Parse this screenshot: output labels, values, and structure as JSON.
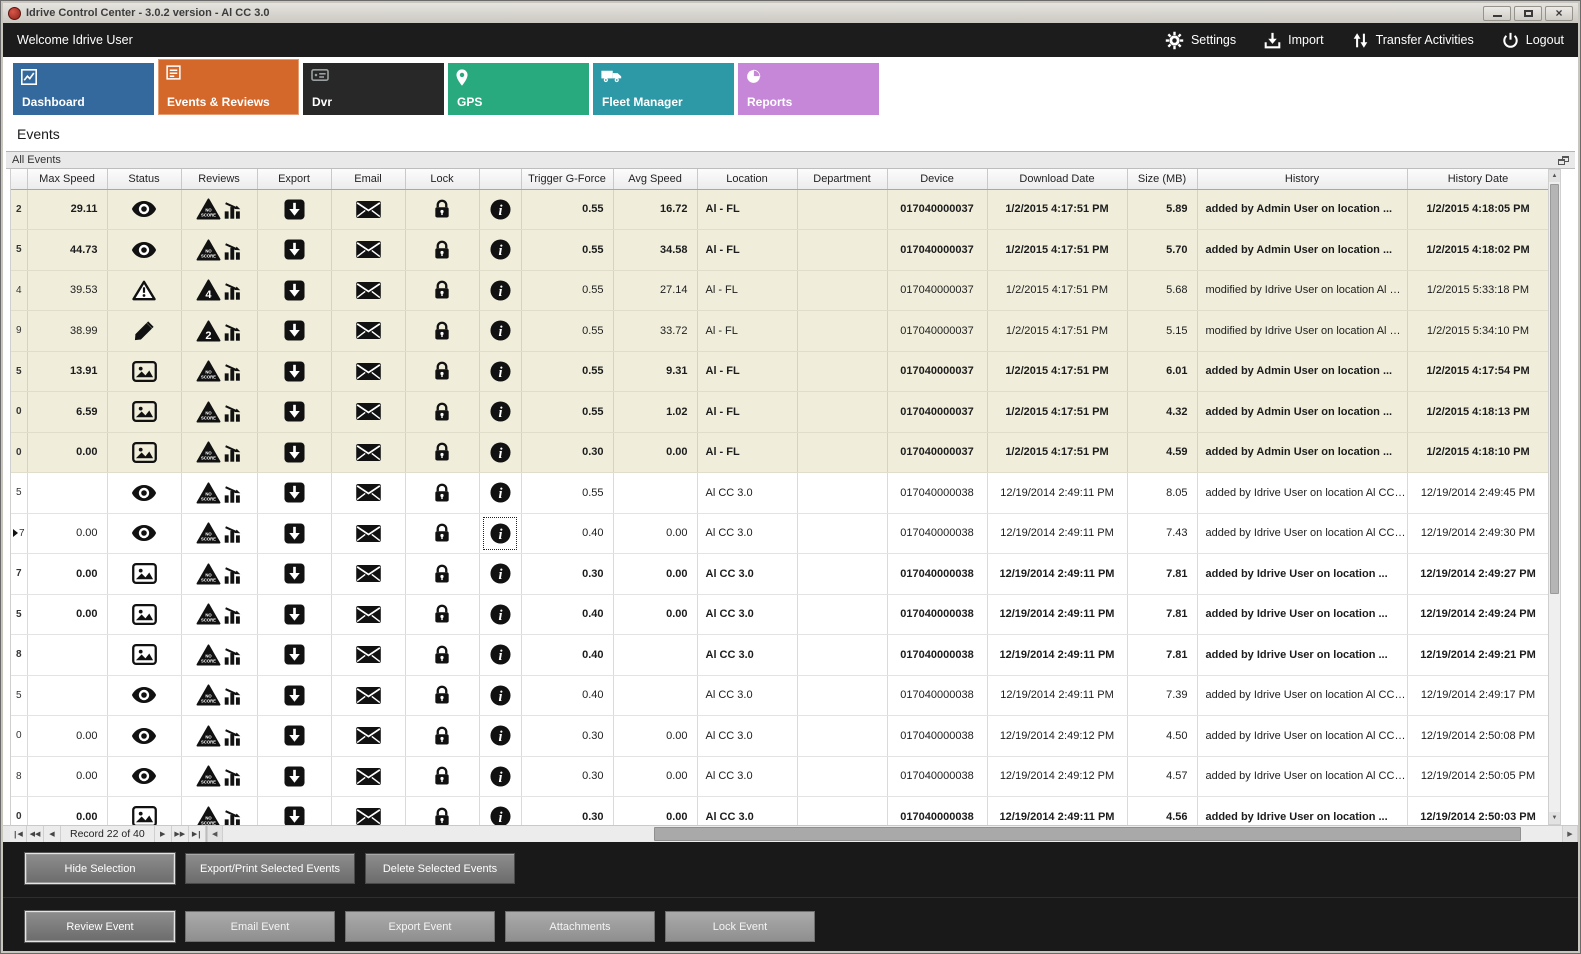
{
  "window": {
    "title": "Idrive Control Center - 3.0.2 version - Al CC 3.0"
  },
  "topbar": {
    "welcome": "Welcome Idrive User",
    "actions": [
      {
        "id": "settings",
        "label": "Settings",
        "icon": "gear-icon"
      },
      {
        "id": "import",
        "label": "Import",
        "icon": "import-icon"
      },
      {
        "id": "transfer-activities",
        "label": "Transfer Activities",
        "icon": "transfer-arrows-icon"
      },
      {
        "id": "logout",
        "label": "Logout",
        "icon": "power-icon"
      }
    ]
  },
  "tabs": [
    {
      "label": "Dashboard",
      "color": "#33699c",
      "icon": "line-chart-icon",
      "selected": false
    },
    {
      "label": "Events & Reviews",
      "color": "#d4682a",
      "icon": "checklist-icon",
      "selected": true
    },
    {
      "label": "Dvr",
      "color": "#282828",
      "icon": "dvr-icon",
      "selected": false
    },
    {
      "label": "GPS",
      "color": "#29a97e",
      "icon": "map-pin-icon",
      "selected": false
    },
    {
      "label": "Fleet Manager",
      "color": "#2d98a6",
      "icon": "truck-icon",
      "selected": false
    },
    {
      "label": "Reports",
      "color": "#c687d8",
      "icon": "pie-chart-icon",
      "selected": false
    }
  ],
  "section_title": "Events",
  "panel": {
    "title": "All Events"
  },
  "table": {
    "columns": [
      "Max Speed",
      "Status",
      "Reviews",
      "Export",
      "Email",
      "Lock",
      "",
      "Trigger G-Force",
      "Avg Speed",
      "Location",
      "Department",
      "Device",
      "Download Date",
      "Size (MB)",
      "History",
      "History Date"
    ],
    "rows": [
      {
        "row_id": "2",
        "selected": false,
        "bold": true,
        "shaded": true,
        "max_speed": "29.11",
        "status_icon": "eye-icon",
        "review_badge": "NO SCORE",
        "trigger_g_force": "0.55",
        "avg_speed": "16.72",
        "location": "Al - FL",
        "department": "",
        "device": "017040000037",
        "download_date": "1/2/2015 4:17:51 PM",
        "size_mb": "5.89",
        "history": "added by Admin User on location ...",
        "history_date": "1/2/2015 4:18:05 PM"
      },
      {
        "row_id": "5",
        "selected": false,
        "bold": true,
        "shaded": true,
        "max_speed": "44.73",
        "status_icon": "eye-icon",
        "review_badge": "NO SCORE",
        "trigger_g_force": "0.55",
        "avg_speed": "34.58",
        "location": "Al - FL",
        "department": "",
        "device": "017040000037",
        "download_date": "1/2/2015 4:17:51 PM",
        "size_mb": "5.70",
        "history": "added by Admin User on location ...",
        "history_date": "1/2/2015 4:18:02 PM"
      },
      {
        "row_id": "4",
        "selected": false,
        "bold": false,
        "shaded": true,
        "max_speed": "39.53",
        "status_icon": "warning-icon",
        "review_badge": "4",
        "trigger_g_force": "0.55",
        "avg_speed": "27.14",
        "location": "Al - FL",
        "department": "",
        "device": "017040000037",
        "download_date": "1/2/2015 4:17:51 PM",
        "size_mb": "5.68",
        "history": "modified by Idrive User on location Al C...",
        "history_date": "1/2/2015 5:33:18 PM"
      },
      {
        "row_id": "9",
        "selected": false,
        "bold": false,
        "shaded": true,
        "max_speed": "38.99",
        "status_icon": "pencil-icon",
        "review_badge": "2",
        "trigger_g_force": "0.55",
        "avg_speed": "33.72",
        "location": "Al - FL",
        "department": "",
        "device": "017040000037",
        "download_date": "1/2/2015 4:17:51 PM",
        "size_mb": "5.15",
        "history": "modified by Idrive User on location Al C...",
        "history_date": "1/2/2015 5:34:10 PM"
      },
      {
        "row_id": "5",
        "selected": false,
        "bold": true,
        "shaded": true,
        "max_speed": "13.91",
        "status_icon": "image-icon",
        "review_badge": "NO SCORE",
        "trigger_g_force": "0.55",
        "avg_speed": "9.31",
        "location": "Al - FL",
        "department": "",
        "device": "017040000037",
        "download_date": "1/2/2015 4:17:51 PM",
        "size_mb": "6.01",
        "history": "added by Admin User on location ...",
        "history_date": "1/2/2015 4:17:54 PM"
      },
      {
        "row_id": "0",
        "selected": false,
        "bold": true,
        "shaded": true,
        "max_speed": "6.59",
        "status_icon": "image-icon",
        "review_badge": "NO SCORE",
        "trigger_g_force": "0.55",
        "avg_speed": "1.02",
        "location": "Al - FL",
        "department": "",
        "device": "017040000037",
        "download_date": "1/2/2015 4:17:51 PM",
        "size_mb": "4.32",
        "history": "added by Admin User on location ...",
        "history_date": "1/2/2015 4:18:13 PM"
      },
      {
        "row_id": "0",
        "selected": false,
        "bold": true,
        "shaded": true,
        "max_speed": "0.00",
        "status_icon": "image-icon",
        "review_badge": "NO SCORE",
        "trigger_g_force": "0.30",
        "avg_speed": "0.00",
        "location": "Al - FL",
        "department": "",
        "device": "017040000037",
        "download_date": "1/2/2015 4:17:51 PM",
        "size_mb": "4.59",
        "history": "added by Admin User on location ...",
        "history_date": "1/2/2015 4:18:10 PM"
      },
      {
        "row_id": "5",
        "selected": false,
        "bold": false,
        "shaded": false,
        "max_speed": "",
        "status_icon": "eye-icon",
        "review_badge": "NO SCORE",
        "trigger_g_force": "0.55",
        "avg_speed": "",
        "location": "Al CC 3.0",
        "department": "",
        "device": "017040000038",
        "download_date": "12/19/2014 2:49:11 PM",
        "size_mb": "8.05",
        "history": "added by Idrive User on location Al CC ...",
        "history_date": "12/19/2014 2:49:45 PM"
      },
      {
        "row_id": "7",
        "selected": true,
        "bold": false,
        "shaded": false,
        "max_speed": "0.00",
        "status_icon": "eye-icon",
        "review_badge": "NO SCORE",
        "trigger_g_force": "0.40",
        "avg_speed": "0.00",
        "location": "Al CC 3.0",
        "department": "",
        "device": "017040000038",
        "download_date": "12/19/2014 2:49:11 PM",
        "size_mb": "7.43",
        "history": "added by Idrive User on location Al CC ...",
        "history_date": "12/19/2014 2:49:30 PM"
      },
      {
        "row_id": "7",
        "selected": false,
        "bold": true,
        "shaded": false,
        "max_speed": "0.00",
        "status_icon": "image-icon",
        "review_badge": "NO SCORE",
        "trigger_g_force": "0.30",
        "avg_speed": "0.00",
        "location": "Al CC 3.0",
        "department": "",
        "device": "017040000038",
        "download_date": "12/19/2014 2:49:11 PM",
        "size_mb": "7.81",
        "history": "added by Idrive User on location ...",
        "history_date": "12/19/2014 2:49:27 PM"
      },
      {
        "row_id": "5",
        "selected": false,
        "bold": true,
        "shaded": false,
        "max_speed": "0.00",
        "status_icon": "image-icon",
        "review_badge": "NO SCORE",
        "trigger_g_force": "0.40",
        "avg_speed": "0.00",
        "location": "Al CC 3.0",
        "department": "",
        "device": "017040000038",
        "download_date": "12/19/2014 2:49:11 PM",
        "size_mb": "7.81",
        "history": "added by Idrive User on location ...",
        "history_date": "12/19/2014 2:49:24 PM"
      },
      {
        "row_id": "8",
        "selected": false,
        "bold": true,
        "shaded": false,
        "max_speed": "",
        "status_icon": "image-icon",
        "review_badge": "NO SCORE",
        "trigger_g_force": "0.40",
        "avg_speed": "",
        "location": "Al CC 3.0",
        "department": "",
        "device": "017040000038",
        "download_date": "12/19/2014 2:49:11 PM",
        "size_mb": "7.81",
        "history": "added by Idrive User on location ...",
        "history_date": "12/19/2014 2:49:21 PM"
      },
      {
        "row_id": "5",
        "selected": false,
        "bold": false,
        "shaded": false,
        "max_speed": "",
        "status_icon": "eye-icon",
        "review_badge": "NO SCORE",
        "trigger_g_force": "0.40",
        "avg_speed": "",
        "location": "Al CC 3.0",
        "department": "",
        "device": "017040000038",
        "download_date": "12/19/2014 2:49:11 PM",
        "size_mb": "7.39",
        "history": "added by Idrive User on location Al CC ...",
        "history_date": "12/19/2014 2:49:17 PM"
      },
      {
        "row_id": "0",
        "selected": false,
        "bold": false,
        "shaded": false,
        "max_speed": "0.00",
        "status_icon": "eye-icon",
        "review_badge": "NO SCORE",
        "trigger_g_force": "0.30",
        "avg_speed": "0.00",
        "location": "Al CC 3.0",
        "department": "",
        "device": "017040000038",
        "download_date": "12/19/2014 2:49:12 PM",
        "size_mb": "4.50",
        "history": "added by Idrive User on location Al CC ...",
        "history_date": "12/19/2014 2:50:08 PM"
      },
      {
        "row_id": "8",
        "selected": false,
        "bold": false,
        "shaded": false,
        "max_speed": "0.00",
        "status_icon": "eye-icon",
        "review_badge": "NO SCORE",
        "trigger_g_force": "0.30",
        "avg_speed": "0.00",
        "location": "Al CC 3.0",
        "department": "",
        "device": "017040000038",
        "download_date": "12/19/2014 2:49:12 PM",
        "size_mb": "4.57",
        "history": "added by Idrive User on location Al CC ...",
        "history_date": "12/19/2014 2:50:05 PM"
      },
      {
        "row_id": "0",
        "selected": false,
        "bold": true,
        "shaded": false,
        "max_speed": "0.00",
        "status_icon": "image-icon",
        "review_badge": "NO SCORE",
        "trigger_g_force": "0.30",
        "avg_speed": "0.00",
        "location": "Al CC 3.0",
        "department": "",
        "device": "017040000038",
        "download_date": "12/19/2014 2:49:11 PM",
        "size_mb": "4.56",
        "history": "added by Idrive User on location ...",
        "history_date": "12/19/2014 2:50:03 PM"
      }
    ]
  },
  "navigator": {
    "text": "Record 22 of 40"
  },
  "action_panels": {
    "row1": [
      "Hide Selection",
      "Export/Print Selected Events",
      "Delete Selected  Events"
    ],
    "row2": [
      "Review Event",
      "Email Event",
      "Export Event",
      "Attachments",
      "Lock Event"
    ]
  },
  "colors": {
    "row_highlight": "#f0eedb",
    "selected_tab": "#d4682a",
    "topbar_bg": "#1c1c1c"
  }
}
